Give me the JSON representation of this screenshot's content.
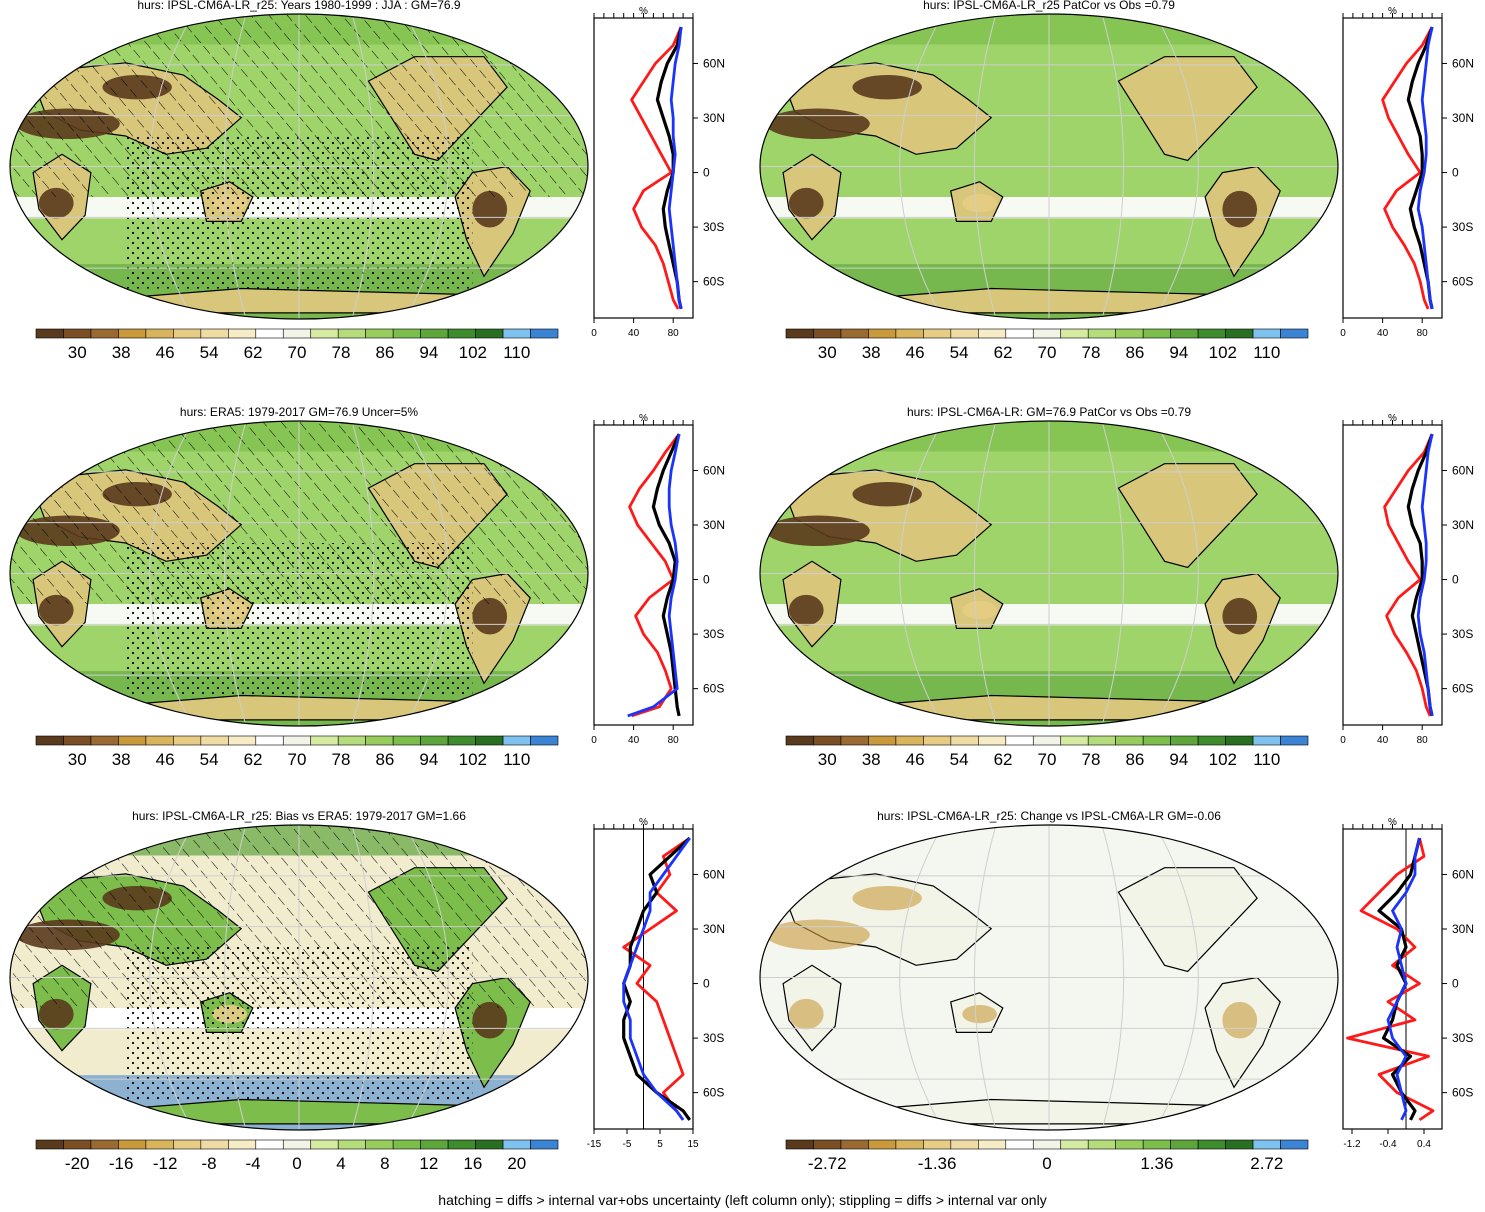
{
  "footnote": "hatching = diffs > internal var+obs uncertainty (left column only); stippling = diffs > internal var only",
  "colors": {
    "brown_to_blue": [
      "#5a3a1d",
      "#7a4f26",
      "#9a6a33",
      "#c89a3c",
      "#d8b45c",
      "#e6cc84",
      "#efdca4",
      "#f6ecc6",
      "#ffffff",
      "#f2f4e8",
      "#d6eba2",
      "#b5dc7a",
      "#98cd5e",
      "#7cbd4c",
      "#5ea53c",
      "#3f8c2e",
      "#2a6e22",
      "#7fc2ef",
      "#3b84d4"
    ],
    "series_red": "#ff1a1a",
    "series_black": "#000000",
    "series_blue": "#1a33ff"
  },
  "chart_data": [
    {
      "type": "heatmap",
      "title": "hurs: IPSL-CM6A-LR_r25: Years 1980-1999 : JJA : GM=76.9",
      "colorbar_ticks": [
        "30",
        "38",
        "46",
        "54",
        "62",
        "70",
        "78",
        "86",
        "94",
        "102",
        "110"
      ],
      "profile": {
        "unit": "%",
        "lat_ticks": [
          "60N",
          "30N",
          "0",
          "30S",
          "60S"
        ],
        "x_ticks": [
          "0",
          "40",
          "80"
        ],
        "xlim": [
          0,
          100
        ],
        "lat": [
          80,
          70,
          60,
          50,
          40,
          30,
          20,
          10,
          0,
          -10,
          -20,
          -30,
          -40,
          -50,
          -60,
          -70,
          -75
        ],
        "series": [
          {
            "color": "red",
            "values": [
              88,
              80,
              62,
              50,
              38,
              48,
              58,
              68,
              78,
              50,
              40,
              48,
              62,
              70,
              75,
              80,
              85
            ]
          },
          {
            "color": "black",
            "values": [
              88,
              84,
              74,
              68,
              64,
              70,
              76,
              80,
              80,
              74,
              70,
              72,
              76,
              80,
              84,
              86,
              88
            ]
          },
          {
            "color": "blue",
            "values": [
              88,
              86,
              82,
              80,
              78,
              80,
              80,
              82,
              80,
              78,
              76,
              78,
              80,
              82,
              84,
              86,
              88
            ]
          }
        ]
      }
    },
    {
      "type": "heatmap",
      "title": "hurs: IPSL-CM6A-LR_r25 PatCor vs Obs =0.79",
      "colorbar_ticks": [
        "30",
        "38",
        "46",
        "54",
        "62",
        "70",
        "78",
        "86",
        "94",
        "102",
        "110"
      ],
      "profile": {
        "unit": "%",
        "lat_ticks": [
          "60N",
          "30N",
          "0",
          "30S",
          "60S"
        ],
        "x_ticks": [
          "0",
          "40",
          "80"
        ],
        "xlim": [
          0,
          100
        ],
        "lat": [
          80,
          70,
          60,
          50,
          40,
          30,
          20,
          10,
          0,
          -10,
          -20,
          -30,
          -40,
          -50,
          -60,
          -70,
          -75
        ],
        "series": [
          {
            "color": "red",
            "values": [
              90,
              80,
              64,
              52,
              40,
              46,
              56,
              66,
              78,
              54,
              42,
              50,
              62,
              72,
              78,
              82,
              86
            ]
          },
          {
            "color": "black",
            "values": [
              90,
              84,
              76,
              70,
              66,
              72,
              78,
              80,
              80,
              74,
              68,
              72,
              78,
              82,
              86,
              88,
              90
            ]
          },
          {
            "color": "blue",
            "values": [
              90,
              86,
              84,
              82,
              80,
              82,
              84,
              84,
              82,
              78,
              76,
              80,
              82,
              84,
              86,
              88,
              90
            ]
          }
        ]
      }
    },
    {
      "type": "heatmap",
      "title": "hurs: ERA5: 1979-2017 GM=76.9 Uncer=5%",
      "colorbar_ticks": [
        "30",
        "38",
        "46",
        "54",
        "62",
        "70",
        "78",
        "86",
        "94",
        "102",
        "110"
      ],
      "profile": {
        "unit": "%",
        "lat_ticks": [
          "60N",
          "30N",
          "0",
          "30S",
          "60S"
        ],
        "x_ticks": [
          "0",
          "40",
          "80"
        ],
        "xlim": [
          0,
          100
        ],
        "lat": [
          80,
          70,
          60,
          50,
          40,
          30,
          20,
          10,
          0,
          -10,
          -20,
          -30,
          -40,
          -50,
          -60,
          -70,
          -75
        ],
        "series": [
          {
            "color": "red",
            "values": [
              86,
              72,
              60,
              46,
              36,
              44,
              58,
              72,
              80,
              56,
              42,
              50,
              64,
              72,
              78,
              66,
              38
            ]
          },
          {
            "color": "black",
            "values": [
              86,
              78,
              70,
              64,
              60,
              66,
              76,
              82,
              80,
              74,
              70,
              74,
              78,
              80,
              82,
              84,
              86
            ]
          },
          {
            "color": "blue",
            "values": [
              86,
              82,
              78,
              76,
              76,
              78,
              82,
              84,
              82,
              78,
              76,
              78,
              80,
              82,
              84,
              60,
              34
            ]
          }
        ]
      }
    },
    {
      "type": "heatmap",
      "title": "hurs: IPSL-CM6A-LR: GM=76.9 PatCor vs Obs =0.79",
      "colorbar_ticks": [
        "30",
        "38",
        "46",
        "54",
        "62",
        "70",
        "78",
        "86",
        "94",
        "102",
        "110"
      ],
      "profile": {
        "unit": "%",
        "lat_ticks": [
          "60N",
          "30N",
          "0",
          "30S",
          "60S"
        ],
        "x_ticks": [
          "0",
          "40",
          "80"
        ],
        "xlim": [
          0,
          100
        ],
        "lat": [
          80,
          70,
          60,
          50,
          40,
          30,
          20,
          10,
          0,
          -10,
          -20,
          -30,
          -40,
          -50,
          -60,
          -70,
          -75
        ],
        "series": [
          {
            "color": "red",
            "values": [
              90,
              82,
              66,
              54,
              42,
              46,
              56,
              66,
              78,
              56,
              44,
              52,
              64,
              74,
              80,
              84,
              88
            ]
          },
          {
            "color": "black",
            "values": [
              90,
              84,
              76,
              70,
              66,
              70,
              78,
              80,
              80,
              74,
              70,
              74,
              78,
              82,
              86,
              88,
              90
            ]
          },
          {
            "color": "blue",
            "values": [
              90,
              86,
              84,
              82,
              80,
              82,
              84,
              84,
              82,
              78,
              76,
              78,
              82,
              84,
              86,
              88,
              90
            ]
          }
        ]
      }
    },
    {
      "type": "heatmap",
      "title": "hurs: IPSL-CM6A-LR_r25: Bias vs ERA5: 1979-2017 GM=1.66",
      "colorbar_ticks": [
        "-20",
        "-16",
        "-12",
        "-8",
        "-4",
        "0",
        "4",
        "8",
        "12",
        "16",
        "20"
      ],
      "profile": {
        "unit": "%",
        "lat_ticks": [
          "60N",
          "30N",
          "0",
          "30S",
          "60S"
        ],
        "x_ticks": [
          "-15",
          "-5",
          "5",
          "15"
        ],
        "xlim": [
          -15,
          15
        ],
        "lat": [
          80,
          70,
          60,
          50,
          40,
          30,
          20,
          10,
          0,
          -10,
          -20,
          -30,
          -40,
          -50,
          -60,
          -70,
          -75
        ],
        "series": [
          {
            "color": "red",
            "values": [
              14,
              6,
              8,
              4,
              10,
              2,
              -6,
              2,
              -2,
              4,
              6,
              8,
              10,
              12,
              6,
              10,
              12
            ]
          },
          {
            "color": "black",
            "values": [
              14,
              8,
              2,
              4,
              0,
              -2,
              -4,
              -4,
              -6,
              -4,
              -6,
              -6,
              -4,
              -2,
              4,
              12,
              14
            ]
          },
          {
            "color": "blue",
            "values": [
              14,
              10,
              6,
              2,
              2,
              0,
              -2,
              -4,
              -6,
              -6,
              -4,
              -4,
              -2,
              0,
              4,
              10,
              12
            ]
          }
        ]
      }
    },
    {
      "type": "heatmap",
      "title": "hurs: IPSL-CM6A-LR_r25: Change vs IPSL-CM6A-LR GM=-0.06",
      "colorbar_ticks": [
        "-2.72",
        "-1.36",
        "0",
        "1.36",
        "2.72"
      ],
      "profile": {
        "unit": "%",
        "lat_ticks": [
          "60N",
          "30N",
          "0",
          "30S",
          "60S"
        ],
        "x_ticks": [
          "-1.2",
          "-0.4",
          "0.4"
        ],
        "xlim": [
          -1.4,
          0.8
        ],
        "lat": [
          80,
          70,
          60,
          50,
          40,
          30,
          20,
          10,
          0,
          -10,
          -20,
          -30,
          -40,
          -50,
          -60,
          -70,
          -75
        ],
        "series": [
          {
            "color": "red",
            "values": [
              0.3,
              0.4,
              -0.2,
              -0.6,
              -1.0,
              -0.2,
              0.2,
              -0.3,
              0.3,
              -0.4,
              0.2,
              -1.3,
              0.5,
              -0.6,
              -0.2,
              0.6,
              0.3
            ]
          },
          {
            "color": "black",
            "values": [
              0.3,
              0.2,
              0.1,
              -0.2,
              -0.6,
              -0.1,
              0.0,
              -0.2,
              0.0,
              -0.2,
              -0.3,
              -0.5,
              0.1,
              -0.3,
              -0.1,
              0.2,
              0.1
            ]
          },
          {
            "color": "blue",
            "values": [
              0.3,
              0.2,
              0.2,
              0.0,
              -0.3,
              -0.1,
              -0.2,
              -0.1,
              0.0,
              -0.2,
              -0.4,
              -0.3,
              0.0,
              -0.2,
              -0.1,
              0.0,
              -0.1
            ]
          }
        ]
      }
    }
  ]
}
